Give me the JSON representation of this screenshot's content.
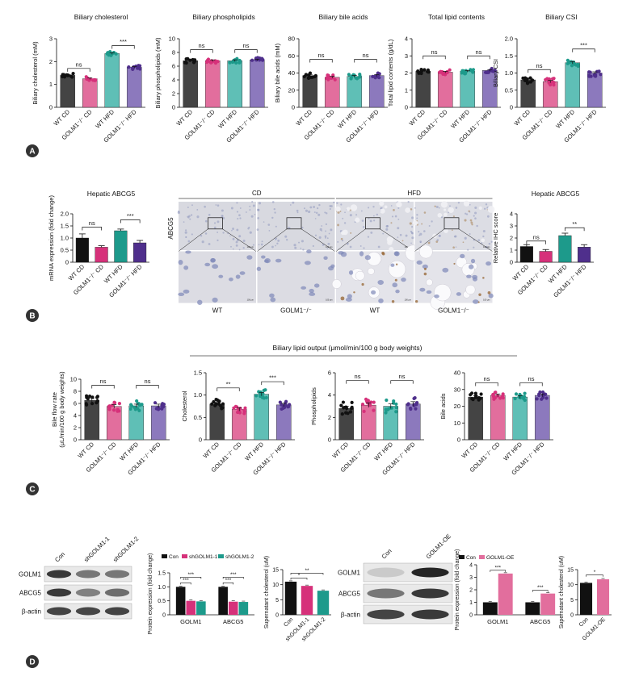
{
  "figure": {
    "panel_letters": [
      "A",
      "B",
      "C",
      "D"
    ],
    "colors": {
      "wt_cd": "#444444",
      "golm_cd": "#e26e9d",
      "wt_hfd": "#5fbfb6",
      "golm_hfd": "#8c79bd",
      "b_wt_cd": "#111111",
      "b_golm_cd": "#d6317a",
      "b_wt_hfd": "#1d9a8b",
      "b_golm_hfd": "#4f2f8c",
      "con": "#111111",
      "sh1": "#d6317a",
      "sh2": "#1d9a8b"
    }
  },
  "panelA_xlabels": [
    "WT CD",
    "GOLM1⁻/⁻ CD",
    "WT HFD",
    "GOLM1⁻/⁻ HFD"
  ],
  "panelC_xlabels": [
    "WT CD",
    "GOLM1⁻/⁻ CD",
    "WT HFD",
    "GOLM1⁻/⁻ HFD"
  ],
  "panelC_group_title": "Biliary lipid output (μmol/min/100 g body weights)",
  "panelB_images": {
    "row_label": "ABCG5",
    "groups": [
      "CD",
      "HFD"
    ],
    "columns": [
      "WT",
      "GOLM1⁻/⁻",
      "WT",
      "GOLM1⁻/⁻"
    ],
    "scale_bar": "100 μm"
  },
  "panelD_blots": {
    "left": {
      "lanes": [
        "Con",
        "shGOLM1-1",
        "shGOLM1-2"
      ],
      "rows": [
        "GOLM1",
        "ABCG5",
        "β-actin"
      ]
    },
    "right": {
      "lanes": [
        "Con",
        "GOLM1-OE"
      ],
      "rows": [
        "GOLM1",
        "ABCG5",
        "β-actin"
      ]
    }
  },
  "chart_data": [
    {
      "id": "a1",
      "type": "bar",
      "title": "Biliary cholesterol",
      "ylabel": "Biliary cholesterol (mM)",
      "ylim": [
        0,
        3
      ],
      "yticks": [
        "0",
        "1",
        "2",
        "3"
      ],
      "values": [
        1.4,
        1.25,
        2.35,
        1.75
      ],
      "sig": [
        {
          "from": 0,
          "to": 1,
          "label": "ns",
          "level": 1.7
        },
        {
          "from": 2,
          "to": 3,
          "label": "***",
          "level": 2.7
        }
      ]
    },
    {
      "id": "a2",
      "type": "bar",
      "title": "Biliary phospholipids",
      "ylabel": "Biliary phospholipids (mM)",
      "ylim": [
        0,
        10
      ],
      "yticks": [
        "0",
        "2",
        "4",
        "6",
        "8",
        "10"
      ],
      "values": [
        6.8,
        6.8,
        6.8,
        6.9
      ],
      "sig": [
        {
          "from": 0,
          "to": 1,
          "label": "ns",
          "level": 8.4
        },
        {
          "from": 2,
          "to": 3,
          "label": "ns",
          "level": 8.4
        }
      ]
    },
    {
      "id": "a3",
      "type": "bar",
      "title": "Biliary bile acids",
      "ylabel": "Biliary bile acids (mM)",
      "ylim": [
        0,
        80
      ],
      "yticks": [
        "0",
        "20",
        "40",
        "60",
        "80"
      ],
      "values": [
        37,
        35,
        36,
        37
      ],
      "sig": [
        {
          "from": 0,
          "to": 1,
          "label": "ns",
          "level": 56
        },
        {
          "from": 2,
          "to": 3,
          "label": "ns",
          "level": 56
        }
      ]
    },
    {
      "id": "a4",
      "type": "bar",
      "title": "Total lipid contents",
      "ylabel": "Total lipid contents (g/dL)",
      "ylim": [
        0,
        4
      ],
      "yticks": [
        "0",
        "1",
        "2",
        "3",
        "4"
      ],
      "values": [
        2.1,
        2.05,
        2.1,
        2.15
      ],
      "sig": [
        {
          "from": 0,
          "to": 1,
          "label": "ns",
          "level": 3.0
        },
        {
          "from": 2,
          "to": 3,
          "label": "ns",
          "level": 3.0
        }
      ]
    },
    {
      "id": "a5",
      "type": "bar",
      "title": "Biliary CSI",
      "ylabel": "Biliary CSI",
      "ylim": [
        0,
        2.0
      ],
      "yticks": [
        "0",
        "0.5",
        "1.0",
        "1.5",
        "2.0"
      ],
      "values": [
        0.8,
        0.75,
        1.3,
        1.0
      ],
      "sig": [
        {
          "from": 0,
          "to": 1,
          "label": "ns",
          "level": 1.1
        },
        {
          "from": 2,
          "to": 3,
          "label": "***",
          "level": 1.7
        }
      ]
    },
    {
      "id": "b1",
      "type": "bar",
      "title": "Hepatic ABCG5",
      "ylabel": "mRNA expression (fold change)",
      "ylim": [
        0,
        2.0
      ],
      "yticks": [
        "0",
        "0.5",
        "1.0",
        "1.5",
        "2.0"
      ],
      "values": [
        1.0,
        0.62,
        1.3,
        0.8
      ],
      "errors": [
        0.17,
        0.06,
        0.07,
        0.1
      ],
      "sig": [
        {
          "from": 0,
          "to": 1,
          "label": "ns",
          "level": 1.45
        },
        {
          "from": 2,
          "to": 3,
          "label": "***",
          "level": 1.75
        }
      ]
    },
    {
      "id": "b2",
      "type": "bar",
      "title": "Hepatic ABCG5",
      "ylabel": "Relative IHC score",
      "ylim": [
        0,
        4
      ],
      "yticks": [
        "0",
        "1",
        "2",
        "3",
        "4"
      ],
      "values": [
        1.3,
        0.9,
        2.2,
        1.25
      ],
      "errors": [
        0.15,
        0.15,
        0.2,
        0.2
      ],
      "sig": [
        {
          "from": 0,
          "to": 1,
          "label": "ns",
          "level": 1.75
        },
        {
          "from": 2,
          "to": 3,
          "label": "**",
          "level": 2.85
        }
      ]
    },
    {
      "id": "c1",
      "type": "bar",
      "title": "",
      "ylabel": "Bile flow rate (μL/min/100 g body weights)",
      "ylim": [
        0,
        10
      ],
      "yticks": [
        "0",
        "2",
        "4",
        "6",
        "8",
        "10"
      ],
      "values": [
        6.5,
        5.5,
        5.6,
        5.6
      ],
      "sig": [
        {
          "from": 0,
          "to": 1,
          "label": "ns",
          "level": 9.0
        },
        {
          "from": 2,
          "to": 3,
          "label": "ns",
          "level": 9.0
        }
      ]
    },
    {
      "id": "c2",
      "type": "bar",
      "title": "",
      "ylabel": "Cholesterol",
      "ylim": [
        0,
        1.5
      ],
      "yticks": [
        "0",
        "0.5",
        "1.0",
        "1.5"
      ],
      "values": [
        0.8,
        0.68,
        1.02,
        0.78
      ],
      "sig": [
        {
          "from": 0,
          "to": 1,
          "label": "**",
          "level": 1.16
        },
        {
          "from": 2,
          "to": 3,
          "label": "***",
          "level": 1.3
        }
      ]
    },
    {
      "id": "c3",
      "type": "bar",
      "title": "",
      "ylabel": "Phospholipids",
      "ylim": [
        0,
        6
      ],
      "yticks": [
        "0",
        "2",
        "4",
        "6"
      ],
      "values": [
        2.8,
        3.1,
        3.0,
        3.2
      ],
      "sig": [
        {
          "from": 0,
          "to": 1,
          "label": "ns",
          "level": 5.3
        },
        {
          "from": 2,
          "to": 3,
          "label": "ns",
          "level": 5.3
        }
      ]
    },
    {
      "id": "c4",
      "type": "bar",
      "title": "",
      "ylabel": "Bile acids",
      "ylim": [
        0,
        40
      ],
      "yticks": [
        "0",
        "10",
        "20",
        "30",
        "40"
      ],
      "values": [
        25.5,
        26.5,
        25.5,
        26.5
      ],
      "sig": [
        {
          "from": 0,
          "to": 1,
          "label": "ns",
          "level": 34
        },
        {
          "from": 2,
          "to": 3,
          "label": "ns",
          "level": 34
        }
      ]
    },
    {
      "id": "d1",
      "type": "bar",
      "title": "",
      "ylabel": "Protein expression (fold change)",
      "ylim": [
        0,
        1.5
      ],
      "yticks": [
        "0",
        "0.5",
        "1.0",
        "1.5"
      ],
      "legend": [
        "Con",
        "shGOLM1-1",
        "shGOLM1-2"
      ],
      "categories": [
        "GOLM1",
        "ABCG5"
      ],
      "series": [
        {
          "name": "Con",
          "values": [
            1.0,
            1.0
          ]
        },
        {
          "name": "shGOLM1-1",
          "values": [
            0.5,
            0.47
          ]
        },
        {
          "name": "shGOLM1-2",
          "values": [
            0.48,
            0.46
          ]
        }
      ],
      "sig": [
        "***",
        "***",
        "***",
        "***"
      ]
    },
    {
      "id": "d2",
      "type": "bar",
      "title": "",
      "ylabel": "Supernatant cholesterol (uM)",
      "ylim": [
        0,
        15
      ],
      "yticks": [
        "0",
        "5",
        "10",
        "15"
      ],
      "categories": [
        "Con",
        "shGOLM1-1",
        "shGOLM1-2"
      ],
      "values": [
        11.0,
        9.6,
        8.0
      ],
      "sig": [
        "*",
        "**"
      ]
    },
    {
      "id": "d3",
      "type": "bar",
      "title": "",
      "ylabel": "Protein expression (fold change)",
      "ylim": [
        0,
        4
      ],
      "yticks": [
        "0",
        "1",
        "2",
        "3",
        "4"
      ],
      "legend": [
        "Con",
        "GOLM1-OE"
      ],
      "categories": [
        "GOLM1",
        "ABCG5"
      ],
      "series": [
        {
          "name": "Con",
          "values": [
            1.0,
            1.0
          ]
        },
        {
          "name": "GOLM1-OE",
          "values": [
            3.3,
            1.7
          ]
        }
      ],
      "sig": [
        "***",
        "***"
      ]
    },
    {
      "id": "d4",
      "type": "bar",
      "title": "",
      "ylabel": "Supernatant cholesterol (uM)",
      "ylim": [
        0,
        15
      ],
      "yticks": [
        "0",
        "5",
        "10",
        "15"
      ],
      "categories": [
        "Con",
        "GOLM1-OE"
      ],
      "values": [
        10.6,
        11.8
      ],
      "sig": [
        "*"
      ]
    }
  ]
}
